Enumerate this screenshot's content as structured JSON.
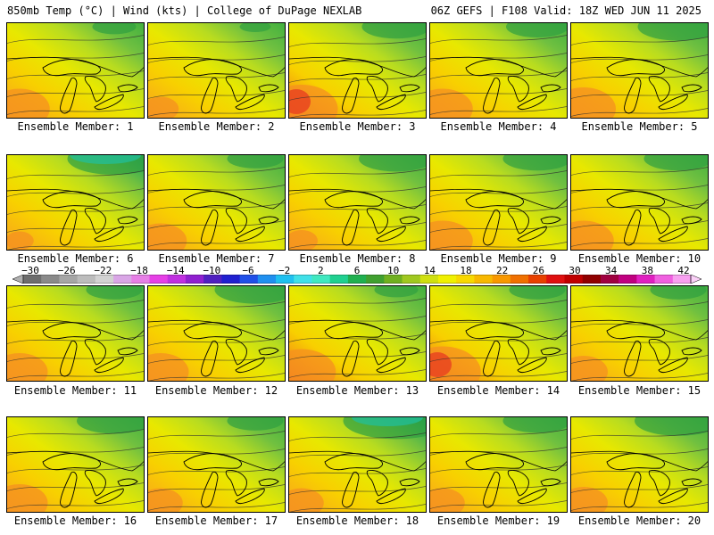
{
  "header": {
    "left_title": "850mb Temp (°C) | Wind (kts) | College of DuPage NEXLAB",
    "right_title": "06Z GEFS | F108 Valid: 18Z WED JUN 11 2025"
  },
  "panels": [
    {
      "label": "Ensemble Member: 1",
      "warm": 0.75,
      "cool": 0.35
    },
    {
      "label": "Ensemble Member: 2",
      "warm": 0.45,
      "cool": 0.25
    },
    {
      "label": "Ensemble Member: 3",
      "warm": 0.9,
      "cool": 0.55
    },
    {
      "label": "Ensemble Member: 4",
      "warm": 0.75,
      "cool": 0.5
    },
    {
      "label": "Ensemble Member: 5",
      "warm": 0.8,
      "cool": 0.65
    },
    {
      "label": "Ensemble Member: 6",
      "warm": 0.35,
      "cool": 0.75
    },
    {
      "label": "Ensemble Member: 7",
      "warm": 0.65,
      "cool": 0.45
    },
    {
      "label": "Ensemble Member: 8",
      "warm": 0.4,
      "cool": 0.6
    },
    {
      "label": "Ensemble Member: 9",
      "warm": 0.75,
      "cool": 0.55
    },
    {
      "label": "Ensemble Member: 10",
      "warm": 0.75,
      "cool": 0.55
    },
    {
      "label": "Ensemble Member: 11",
      "warm": 0.7,
      "cool": 0.45
    },
    {
      "label": "Ensemble Member: 12",
      "warm": 0.7,
      "cool": 0.65
    },
    {
      "label": "Ensemble Member: 13",
      "warm": 0.85,
      "cool": 0.35
    },
    {
      "label": "Ensemble Member: 14",
      "warm": 0.95,
      "cool": 0.45
    },
    {
      "label": "Ensemble Member: 15",
      "warm": 0.6,
      "cool": 0.45
    },
    {
      "label": "Ensemble Member: 16",
      "warm": 0.7,
      "cool": 0.6
    },
    {
      "label": "Ensemble Member: 17",
      "warm": 0.55,
      "cool": 0.45
    },
    {
      "label": "Ensemble Member: 18",
      "warm": 0.55,
      "cool": 0.85
    },
    {
      "label": "Ensemble Member: 19",
      "warm": 0.55,
      "cool": 0.55
    },
    {
      "label": "Ensemble Member: 20",
      "warm": 0.6,
      "cool": 0.7
    }
  ],
  "colorbar": {
    "tick_labels": [
      "−30",
      "−26",
      "−22",
      "−18",
      "−14",
      "−10",
      "−6",
      "−2",
      "2",
      "6",
      "10",
      "14",
      "18",
      "22",
      "26",
      "30",
      "34",
      "38",
      "42"
    ],
    "colors": [
      "#6e6e6e",
      "#8a8a8a",
      "#a6a6a6",
      "#bcbcbc",
      "#d2d2d2",
      "#d9a6e6",
      "#e67fe6",
      "#e640e6",
      "#c030e0",
      "#9020d0",
      "#5020c0",
      "#2020d0",
      "#2050e8",
      "#2090f0",
      "#20c0f0",
      "#40e0e8",
      "#40e8c0",
      "#20d090",
      "#20b050",
      "#40a030",
      "#70b020",
      "#a0c820",
      "#d0e010",
      "#f0f000",
      "#f8d800",
      "#f8b800",
      "#f89800",
      "#f07000",
      "#e84000",
      "#e01010",
      "#c00000",
      "#900000",
      "#a00040",
      "#c00080",
      "#e020c0",
      "#f060e0",
      "#f8a0f0"
    ]
  }
}
